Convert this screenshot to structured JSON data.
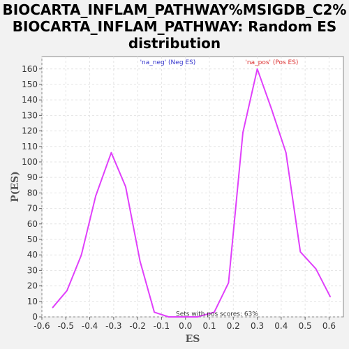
{
  "chart_data": {
    "type": "line",
    "title_lines": [
      "BIOCARTA_INFLAM_PATHWAY%MSIGDB_C2%",
      "BIOCARTA_INFLAM_PATHWAY: Random ES",
      "distribution"
    ],
    "xlabel": "ES",
    "ylabel": "P(ES)",
    "xlim": [
      -0.6,
      0.66
    ],
    "ylim": [
      0,
      168
    ],
    "x_ticks": [
      -0.6,
      -0.5,
      -0.4,
      -0.3,
      -0.2,
      -0.1,
      0.0,
      0.1,
      0.2,
      0.3,
      0.4,
      0.5,
      0.6
    ],
    "x_tick_labels": [
      "-0.6",
      "-0.5",
      "-0.4",
      "-0.3",
      "-0.2",
      "-0.1",
      "0.0",
      "0.1",
      "0.2",
      "0.3",
      "0.4",
      "0.5",
      "0.6"
    ],
    "y_ticks": [
      0,
      10,
      20,
      30,
      40,
      50,
      60,
      70,
      80,
      90,
      100,
      110,
      120,
      130,
      140,
      150,
      160
    ],
    "y_tick_labels": [
      "0",
      "10",
      "20",
      "30",
      "40",
      "50",
      "60",
      "70",
      "80",
      "90",
      "100",
      "110",
      "120",
      "130",
      "140",
      "150",
      "160"
    ],
    "grid": true,
    "series": [
      {
        "color": "#e040fb",
        "x": [
          -0.555,
          -0.495,
          -0.435,
          -0.375,
          -0.31,
          -0.25,
          -0.19,
          -0.13,
          -0.07,
          -0.01,
          0.05,
          0.12,
          0.18,
          0.24,
          0.3,
          0.36,
          0.42,
          0.48,
          0.545,
          0.605
        ],
        "y": [
          6,
          17,
          40,
          78,
          106,
          84,
          36,
          3,
          0,
          0,
          0,
          3,
          22,
          119,
          160,
          134,
          106,
          42,
          31,
          13
        ]
      }
    ],
    "annotations": [
      {
        "text": "'na_neg' (Neg ES)",
        "color": "#3333cc",
        "x": -0.19,
        "y": 163
      },
      {
        "text": "'na_pos' (Pos ES)",
        "color": "#dd3333",
        "x": 0.25,
        "y": 163
      },
      {
        "text": "Sets with pos scores: 63%",
        "color": "#333333",
        "x": -0.04,
        "y": 0.6
      }
    ]
  }
}
